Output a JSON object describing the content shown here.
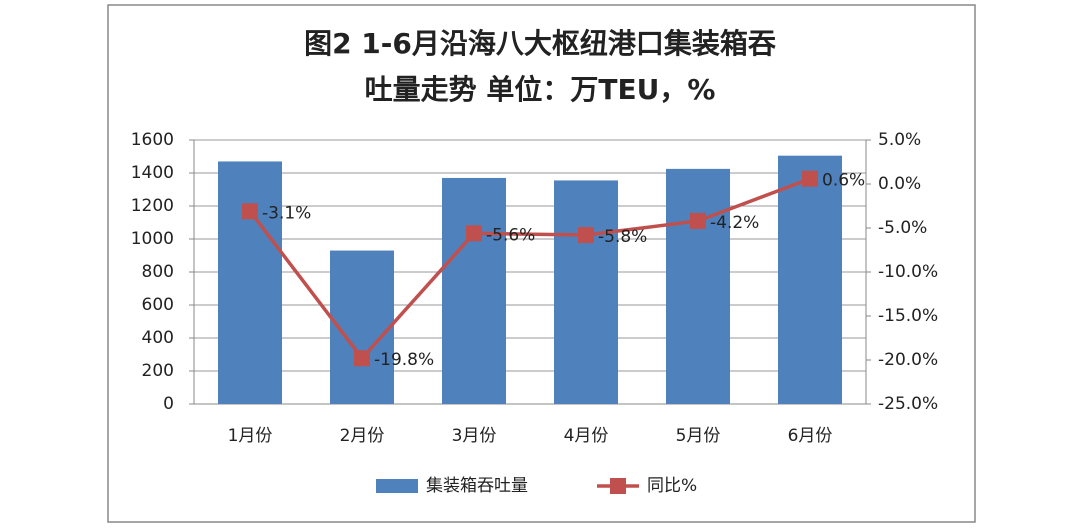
{
  "chart_data": {
    "type": "combo",
    "title": [
      "图2  1-6月沿海八大枢纽港口集装箱吞",
      "吐量走势  单位：万TEU，%"
    ],
    "categories": [
      "1月份",
      "2月份",
      "3月份",
      "4月份",
      "5月份",
      "6月份"
    ],
    "series": [
      {
        "name": "集装箱吞吐量",
        "type": "bar",
        "color": "#4f81bd",
        "values": [
          1470,
          930,
          1370,
          1355,
          1425,
          1505
        ]
      },
      {
        "name": "同比%",
        "type": "line",
        "axis": "y2",
        "color": "#c0504d",
        "values": [
          -3.1,
          -19.8,
          -5.6,
          -5.8,
          -4.2,
          0.6
        ],
        "value_labels": [
          "-3.1%",
          "-19.8%",
          "-5.6%",
          "-5.8%",
          "-4.2%",
          "0.6%"
        ]
      }
    ],
    "ylim": [
      0,
      1600
    ],
    "yticks": [
      0,
      200,
      400,
      600,
      800,
      1000,
      1200,
      1400,
      1600
    ],
    "y2lim": [
      -25,
      5
    ],
    "y2ticks": [
      {
        "value": -25,
        "label": "-25.0%"
      },
      {
        "value": -20,
        "label": "-20.0%"
      },
      {
        "value": -15,
        "label": "-15.0%"
      },
      {
        "value": -10,
        "label": "-10.0%"
      },
      {
        "value": -5,
        "label": "-5.0%"
      },
      {
        "value": 0,
        "label": "0.0%"
      },
      {
        "value": 5,
        "label": "5.0%"
      }
    ],
    "grid": true,
    "legend": "bottom"
  }
}
